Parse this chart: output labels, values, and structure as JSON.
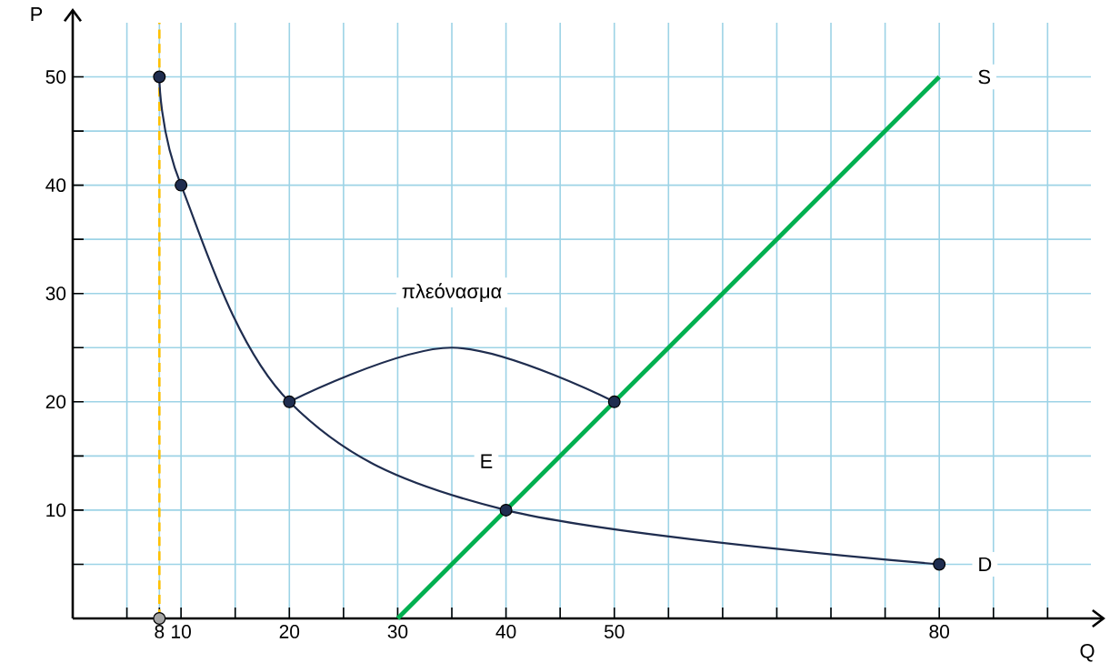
{
  "chart_data": {
    "type": "line",
    "xlabel": "Q",
    "ylabel": "P",
    "xlim": [
      0,
      94
    ],
    "ylim": [
      0,
      55
    ],
    "xticks": [
      {
        "value": 5,
        "label": null
      },
      8,
      10,
      {
        "value": 15,
        "label": null
      },
      20,
      {
        "value": 25,
        "label": null
      },
      30,
      {
        "value": 35,
        "label": null
      },
      40,
      {
        "value": 45,
        "label": null
      },
      50,
      {
        "value": 55,
        "label": null
      },
      {
        "value": 60,
        "label": null
      },
      {
        "value": 65,
        "label": null
      },
      {
        "value": 70,
        "label": null
      },
      {
        "value": 75,
        "label": null
      },
      80,
      {
        "value": 85,
        "label": null
      },
      {
        "value": 90,
        "label": null
      }
    ],
    "yticks": [
      {
        "value": 5,
        "label": null
      },
      10,
      {
        "value": 15,
        "label": null
      },
      20,
      {
        "value": 25,
        "label": null
      },
      30,
      {
        "value": 35,
        "label": null
      },
      40,
      {
        "value": 45,
        "label": null
      },
      50
    ],
    "grid": true,
    "line_style": "solid",
    "series": [
      {
        "name": "D",
        "color": "#1f2d4f",
        "x": [
          8,
          10,
          20,
          40,
          80
        ],
        "values": [
          50,
          40,
          20,
          10,
          5
        ],
        "marker": "circle"
      },
      {
        "name": "πλεόνασμα",
        "color": "#1f2d4f",
        "x": [
          20,
          35,
          50
        ],
        "values": [
          20,
          25,
          20
        ],
        "marker": "none"
      },
      {
        "name": "S",
        "color": "#00b050",
        "x": [
          30,
          80
        ],
        "values": [
          0,
          50
        ],
        "marker": "none"
      },
      {
        "type": "scatter",
        "color": "#1f2d4f",
        "x": [
          50
        ],
        "values": [
          20
        ],
        "marker": "circle"
      },
      {
        "type": "scatter",
        "color": "#a6a6a6",
        "x": [
          8
        ],
        "values": [
          0
        ],
        "marker": "circle"
      }
    ],
    "ref_lines": [
      {
        "axis": "x",
        "value": 8,
        "color": "#ffc000",
        "line_style": "dashed"
      }
    ],
    "annotations": [
      {
        "text": "E",
        "x": 40,
        "y": 10
      }
    ]
  }
}
